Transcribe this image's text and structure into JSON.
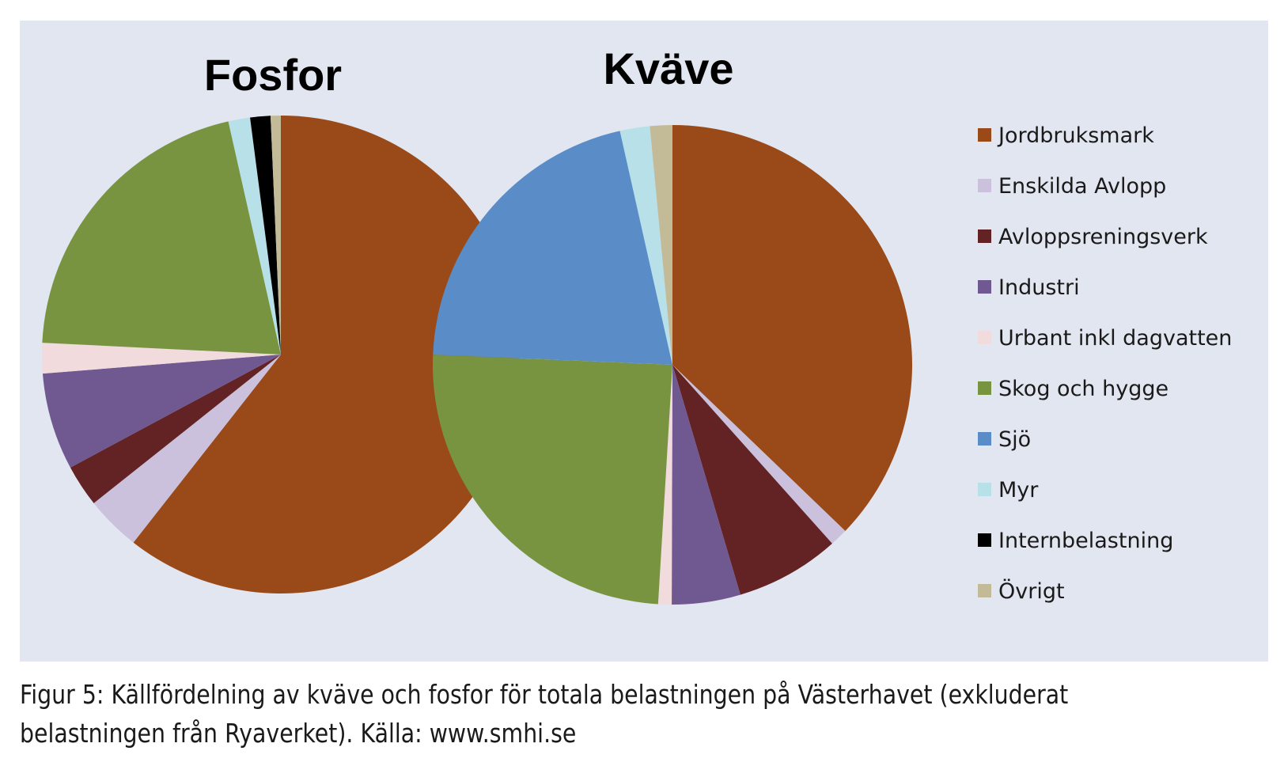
{
  "chart_data": {
    "type": "pie",
    "categories": [
      "Jordbruksmark",
      "Enskilda Avlopp",
      "Avloppsreningsverk",
      "Industri",
      "Urbant inkl dagvatten",
      "Skog och hygge",
      "Sjö",
      "Myr",
      "Internbelastning",
      "Övrigt"
    ],
    "colors": [
      "#994a18",
      "#cbc1dc",
      "#632325",
      "#705890",
      "#f1dbdc",
      "#799440",
      "#5a8dc7",
      "#b8e0e8",
      "#000000",
      "#c3bb98"
    ],
    "series": [
      {
        "name": "Fosfor",
        "values": [
          61.8,
          3.8,
          2.9,
          6.7,
          2.1,
          21.1,
          0.0,
          1.5,
          1.4,
          0.7
        ]
      },
      {
        "name": "Kväve",
        "values": [
          37.0,
          1.2,
          7.0,
          4.6,
          0.9,
          24.6,
          20.7,
          2.0,
          0.0,
          1.5
        ]
      }
    ],
    "legend_position": "right"
  },
  "caption": {
    "line1": "Figur 5: Källfördelning av kväve och fosfor för totala belastningen på Västerhavet (exkluderat",
    "line2": "belastningen från Ryaverket). Källa: www.smhi.se"
  }
}
